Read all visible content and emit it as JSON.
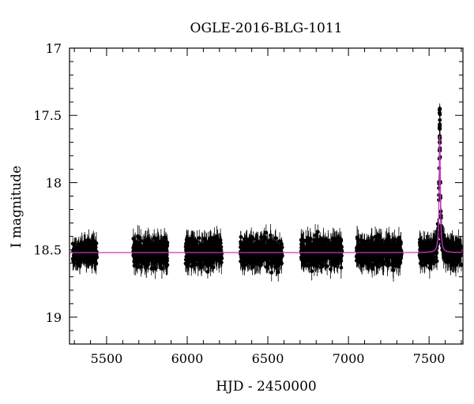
{
  "chart_data": {
    "type": "scatter",
    "title": "OGLE-2016-BLG-1011",
    "xlabel": "HJD - 2450000",
    "ylabel": "I magnitude",
    "xlim": [
      5270,
      7710
    ],
    "ylim": [
      19.2,
      17.0
    ],
    "y_inverted": true,
    "x_ticks": [
      5500,
      6000,
      6500,
      7000,
      7500
    ],
    "y_ticks": [
      17,
      17.5,
      18,
      18.5,
      19
    ],
    "x_minor_step": 100,
    "y_minor_step": 0.1,
    "grid": false,
    "colors": {
      "points": "#000000",
      "model": "#cc33cc",
      "frame": "#000000"
    },
    "series": [
      {
        "kind": "observations",
        "baseline_mag": 18.52,
        "seasons": [
          {
            "start": 5290,
            "end": 5440,
            "scatter": 0.09
          },
          {
            "start": 5665,
            "end": 5880,
            "scatter": 0.11
          },
          {
            "start": 5990,
            "end": 6215,
            "scatter": 0.11
          },
          {
            "start": 6330,
            "end": 6590,
            "scatter": 0.11
          },
          {
            "start": 6705,
            "end": 6960,
            "scatter": 0.11
          },
          {
            "start": 7050,
            "end": 7330,
            "scatter": 0.11
          },
          {
            "start": 7440,
            "end": 7700,
            "scatter": 0.1
          }
        ],
        "peak": {
          "t0": 7566,
          "min_mag": 17.43,
          "points_at_peak": 18
        }
      },
      {
        "kind": "model",
        "baseline_mag": 18.52,
        "t0": 7566,
        "peak_mag": 17.65,
        "tE_days": 9
      }
    ]
  }
}
